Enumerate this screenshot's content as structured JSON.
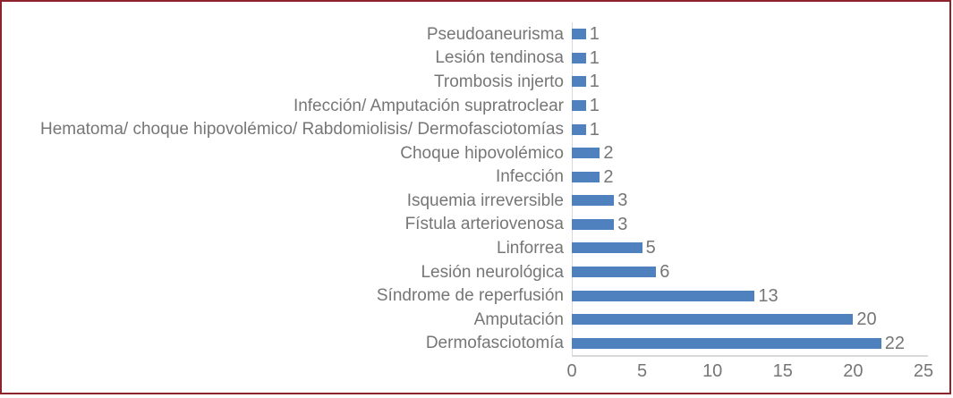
{
  "chart_data": {
    "type": "bar",
    "orientation": "horizontal",
    "title": "",
    "xlabel": "",
    "ylabel": "",
    "categories": [
      "Pseudoaneurisma",
      "Lesión tendinosa",
      "Trombosis injerto",
      "Infección/ Amputación supratroclear",
      "Hematoma/ choque hipovolémico/ Rabdomiolisis/ Dermofasciotomías",
      "Choque hipovolémico",
      "Infección",
      "Isquemia irreversible",
      "Fístula arteriovenosa",
      "Linforrea",
      "Lesión neurológica",
      "Síndrome de reperfusión",
      "Amputación",
      "Dermofasciotomía"
    ],
    "values": [
      1,
      1,
      1,
      1,
      1,
      2,
      2,
      3,
      3,
      5,
      6,
      13,
      20,
      22
    ],
    "data_labels": [
      1,
      1,
      1,
      1,
      1,
      2,
      2,
      3,
      3,
      5,
      6,
      13,
      20,
      22
    ],
    "x_ticks": [
      0,
      5,
      10,
      15,
      20,
      25
    ],
    "xlim": [
      0,
      25
    ],
    "grid": false,
    "legend": false,
    "colors": {
      "bar": "#4E81BD",
      "axis_line": "#D9D9D9",
      "text": "#767676",
      "frame_border": "#8C232D",
      "background": "#ffffff"
    }
  }
}
